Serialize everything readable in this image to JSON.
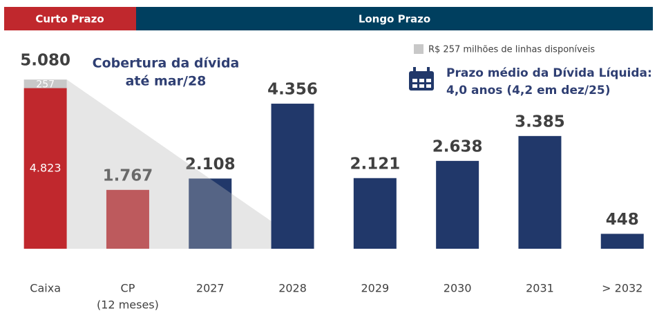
{
  "chart_data": {
    "type": "bar",
    "headers": [
      "Curto Prazo",
      "Longo Prazo"
    ],
    "header_colors": [
      "#c0282d",
      "#003f5f"
    ],
    "annotations": [
      [
        "Cobertura da dívida",
        "até mar/28"
      ],
      [
        "Prazo médio da Dívida Líquida:",
        "4,0 anos (4,2 em dez/25)"
      ]
    ],
    "categories": [
      "Caixa",
      [
        "CP",
        "(12 meses)"
      ],
      "2027",
      "2028",
      "2029",
      "2030",
      "2031",
      "> 2032"
    ],
    "series": [
      {
        "values": [
          4823,
          1767,
          2108,
          4356,
          2121,
          2638,
          3385,
          448
        ],
        "value_labels": [
          "4.823",
          "1.767",
          "2.108",
          "4.356",
          "2.121",
          "2.638",
          "3.385",
          "448"
        ],
        "colors": [
          "#c0282d",
          "#c0282d",
          "#21386a",
          "#21386a",
          "#21386a",
          "#21386a",
          "#21386a",
          "#21386a"
        ]
      },
      {
        "name": "R$ 257 milhões de linhas disponíveis",
        "color": "#c8c8c8",
        "values": [
          257,
          null,
          null,
          null,
          null,
          null,
          null,
          null
        ],
        "value_labels": [
          "257",
          null,
          null,
          null,
          null,
          null,
          null,
          null
        ]
      }
    ],
    "total_value": 5080,
    "total_label": "5.080",
    "ylim": [
      0,
      5000
    ]
  }
}
